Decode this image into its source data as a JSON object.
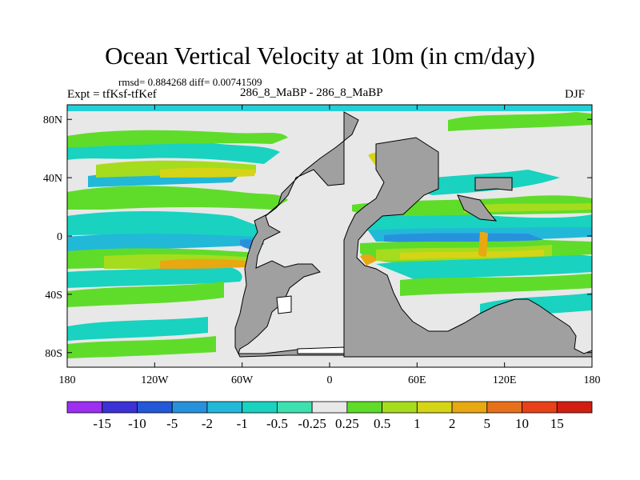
{
  "chart_data": {
    "type": "contour-map",
    "title": "Ocean Vertical Velocity at 10m (in cm/day)",
    "stats_text": "rmsd= 0.884268 diff= 0.00741509",
    "left_label": "Expt = tfKsf-tfKef",
    "center_label": "286_8_MaBP - 286_8_MaBP",
    "right_label": "DJF",
    "xlim": [
      -180,
      180
    ],
    "ylim": [
      -90,
      90
    ],
    "x_ticks": [
      {
        "value": -180,
        "label": "180"
      },
      {
        "value": -120,
        "label": "120W"
      },
      {
        "value": -60,
        "label": "60W"
      },
      {
        "value": 0,
        "label": "0"
      },
      {
        "value": 60,
        "label": "60E"
      },
      {
        "value": 120,
        "label": "120E"
      },
      {
        "value": 180,
        "label": "180"
      }
    ],
    "y_ticks": [
      {
        "value": 80,
        "label": "80N"
      },
      {
        "value": 40,
        "label": "40N"
      },
      {
        "value": 0,
        "label": "0"
      },
      {
        "value": -40,
        "label": "40S"
      },
      {
        "value": -80,
        "label": "80S"
      }
    ],
    "colorbar": {
      "levels": [
        "-15",
        "-10",
        "-5",
        "-2",
        "-1",
        "-0.5",
        "-0.25",
        "0.25",
        "0.5",
        "1",
        "2",
        "5",
        "10",
        "15"
      ],
      "colors": [
        "#9d2ff0",
        "#3c32d6",
        "#2358d8",
        "#2891dc",
        "#22b8d8",
        "#19d2c0",
        "#3fe0b0",
        "#e8e8e8",
        "#5fdc2a",
        "#a6dc1e",
        "#d6d416",
        "#e8a812",
        "#e8701a",
        "#e84018",
        "#d21e10"
      ]
    },
    "land_color": "#a0a0a0",
    "neutral_color": "#e8e8e8"
  }
}
